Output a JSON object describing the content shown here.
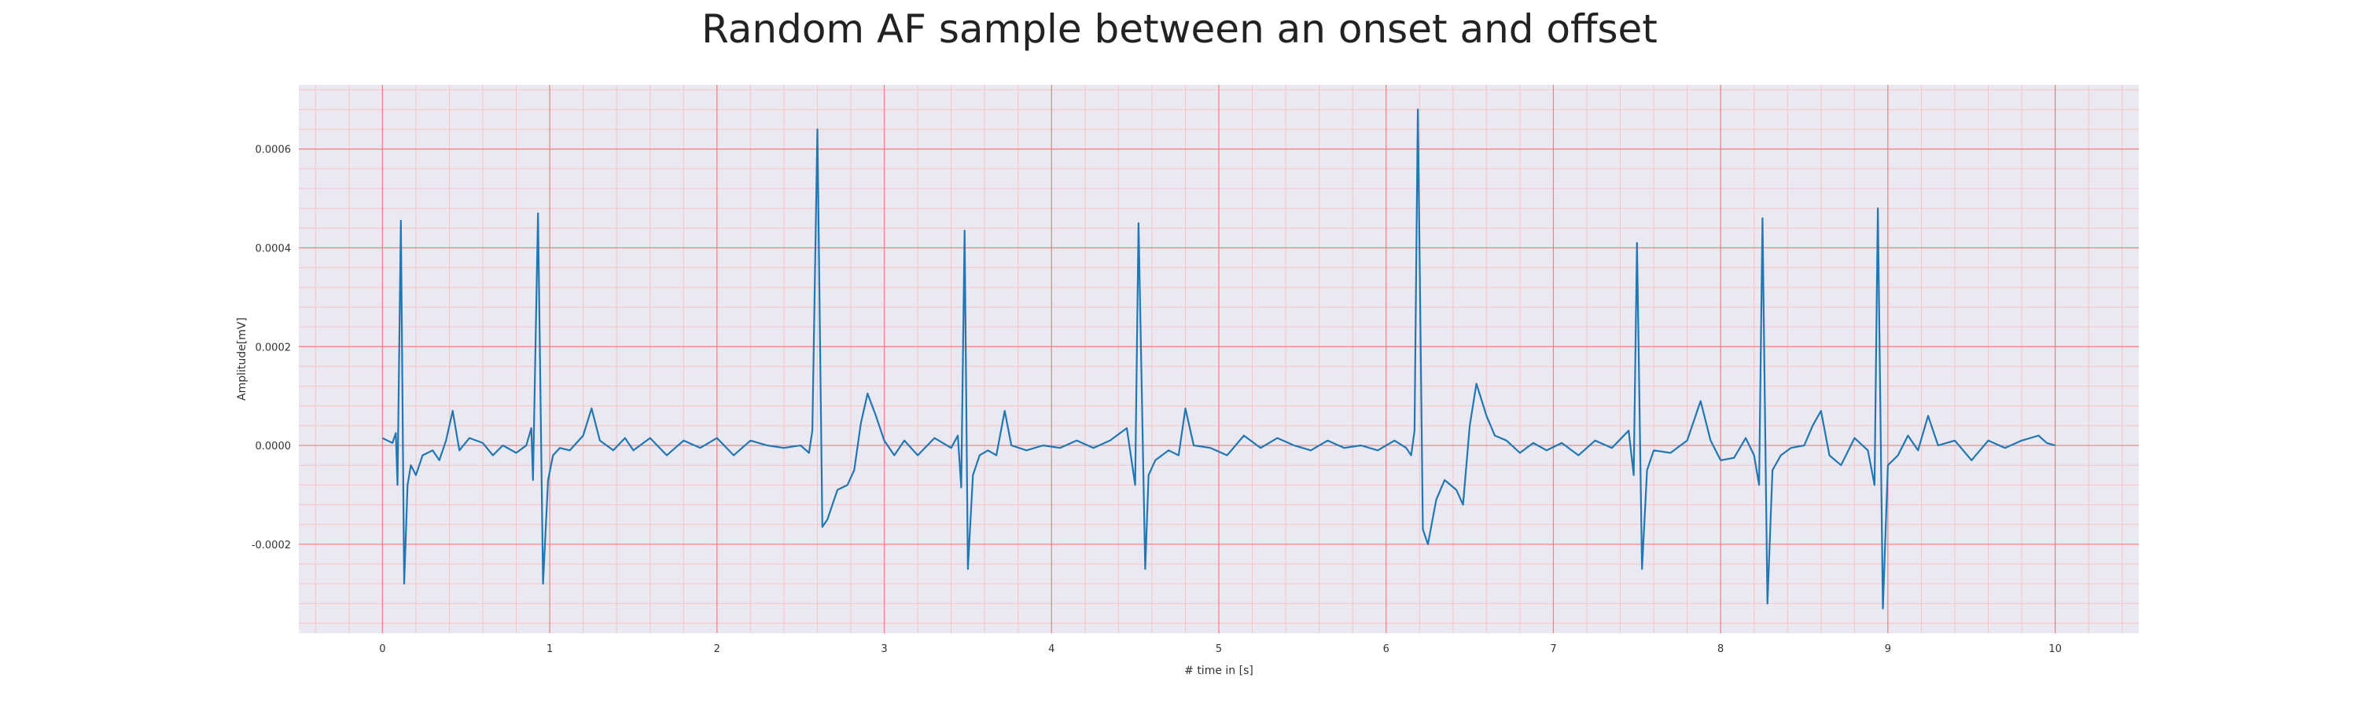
{
  "chart_data": {
    "type": "line",
    "title": "Random AF sample between an onset and offset",
    "xlabel": "# time in [s]",
    "ylabel": "Amplitude[mV]",
    "xlim": [
      -0.5,
      10.5
    ],
    "ylim": [
      -0.00038,
      0.00073
    ],
    "x_ticks": [
      0,
      1,
      2,
      3,
      4,
      5,
      6,
      7,
      8,
      9,
      10
    ],
    "x_tick_labels": [
      "0",
      "1",
      "2",
      "3",
      "4",
      "5",
      "6",
      "7",
      "8",
      "9",
      "10"
    ],
    "y_ticks": [
      -0.0002,
      0.0,
      0.0002,
      0.0004,
      0.0006
    ],
    "y_tick_labels": [
      "-0.0002",
      "0.0000",
      "0.0002",
      "0.0004",
      "0.0006"
    ],
    "grid": true,
    "colors": {
      "line": "#1f77b4",
      "background": "#eae9f2",
      "major_grid": "#f08080",
      "minor_grid": "#f7c4c4"
    },
    "series": [
      {
        "points": [
          [
            0.0,
            1.5e-05
          ],
          [
            0.03,
            1e-05
          ],
          [
            0.06,
            5e-06
          ],
          [
            0.08,
            2.5e-05
          ],
          [
            0.09,
            -8e-05
          ],
          [
            0.11,
            0.000455
          ],
          [
            0.13,
            -0.00028
          ],
          [
            0.15,
            -8e-05
          ],
          [
            0.17,
            -4e-05
          ],
          [
            0.2,
            -6e-05
          ],
          [
            0.24,
            -2e-05
          ],
          [
            0.3,
            -1e-05
          ],
          [
            0.34,
            -3e-05
          ],
          [
            0.38,
            1e-05
          ],
          [
            0.42,
            7e-05
          ],
          [
            0.46,
            -1e-05
          ],
          [
            0.52,
            1.5e-05
          ],
          [
            0.6,
            5e-06
          ],
          [
            0.66,
            -2e-05
          ],
          [
            0.72,
            0.0
          ],
          [
            0.8,
            -1.5e-05
          ],
          [
            0.86,
            0.0
          ],
          [
            0.89,
            3.5e-05
          ],
          [
            0.9,
            -7e-05
          ],
          [
            0.93,
            0.00047
          ],
          [
            0.96,
            -0.00028
          ],
          [
            0.99,
            -7e-05
          ],
          [
            1.02,
            -2e-05
          ],
          [
            1.06,
            -5e-06
          ],
          [
            1.12,
            -1e-05
          ],
          [
            1.2,
            2e-05
          ],
          [
            1.25,
            7.5e-05
          ],
          [
            1.3,
            1e-05
          ],
          [
            1.38,
            -1e-05
          ],
          [
            1.45,
            1.5e-05
          ],
          [
            1.5,
            -1e-05
          ],
          [
            1.6,
            1.5e-05
          ],
          [
            1.7,
            -2e-05
          ],
          [
            1.8,
            1e-05
          ],
          [
            1.9,
            -5e-06
          ],
          [
            2.0,
            1.5e-05
          ],
          [
            2.1,
            -2e-05
          ],
          [
            2.2,
            1e-05
          ],
          [
            2.3,
            0.0
          ],
          [
            2.4,
            -5e-06
          ],
          [
            2.5,
            0.0
          ],
          [
            2.55,
            -1.5e-05
          ],
          [
            2.57,
            3e-05
          ],
          [
            2.6,
            0.00064
          ],
          [
            2.63,
            -0.000165
          ],
          [
            2.66,
            -0.00015
          ],
          [
            2.72,
            -9e-05
          ],
          [
            2.78,
            -8e-05
          ],
          [
            2.82,
            -5e-05
          ],
          [
            2.86,
            4.5e-05
          ],
          [
            2.9,
            0.000105
          ],
          [
            2.95,
            6e-05
          ],
          [
            3.0,
            1e-05
          ],
          [
            3.06,
            -2e-05
          ],
          [
            3.12,
            1e-05
          ],
          [
            3.2,
            -2e-05
          ],
          [
            3.3,
            1.5e-05
          ],
          [
            3.4,
            -5e-06
          ],
          [
            3.44,
            2e-05
          ],
          [
            3.46,
            -8.5e-05
          ],
          [
            3.48,
            0.000435
          ],
          [
            3.5,
            -0.00025
          ],
          [
            3.53,
            -6e-05
          ],
          [
            3.57,
            -2e-05
          ],
          [
            3.62,
            -1e-05
          ],
          [
            3.67,
            -2e-05
          ],
          [
            3.72,
            7e-05
          ],
          [
            3.76,
            0.0
          ],
          [
            3.85,
            -1e-05
          ],
          [
            3.95,
            0.0
          ],
          [
            4.05,
            -5e-06
          ],
          [
            4.15,
            1e-05
          ],
          [
            4.25,
            -5e-06
          ],
          [
            4.35,
            1e-05
          ],
          [
            4.45,
            3.5e-05
          ],
          [
            4.5,
            -8e-05
          ],
          [
            4.52,
            0.00045
          ],
          [
            4.56,
            -0.00025
          ],
          [
            4.58,
            -6e-05
          ],
          [
            4.62,
            -3e-05
          ],
          [
            4.7,
            -1e-05
          ],
          [
            4.76,
            -2e-05
          ],
          [
            4.8,
            7.5e-05
          ],
          [
            4.85,
            0.0
          ],
          [
            4.95,
            -5e-06
          ],
          [
            5.05,
            -2e-05
          ],
          [
            5.15,
            2e-05
          ],
          [
            5.25,
            -5e-06
          ],
          [
            5.35,
            1.5e-05
          ],
          [
            5.45,
            0.0
          ],
          [
            5.55,
            -1e-05
          ],
          [
            5.65,
            1e-05
          ],
          [
            5.75,
            -5e-06
          ],
          [
            5.85,
            0.0
          ],
          [
            5.95,
            -1e-05
          ],
          [
            6.05,
            1e-05
          ],
          [
            6.12,
            -5e-06
          ],
          [
            6.15,
            -2e-05
          ],
          [
            6.17,
            3e-05
          ],
          [
            6.19,
            0.00068
          ],
          [
            6.22,
            -0.00017
          ],
          [
            6.25,
            -0.0002
          ],
          [
            6.3,
            -0.00011
          ],
          [
            6.35,
            -7e-05
          ],
          [
            6.42,
            -9e-05
          ],
          [
            6.46,
            -0.00012
          ],
          [
            6.5,
            4e-05
          ],
          [
            6.54,
            0.000125
          ],
          [
            6.6,
            6e-05
          ],
          [
            6.65,
            2e-05
          ],
          [
            6.72,
            1e-05
          ],
          [
            6.8,
            -1.5e-05
          ],
          [
            6.88,
            5e-06
          ],
          [
            6.96,
            -1e-05
          ],
          [
            7.05,
            5e-06
          ],
          [
            7.15,
            -2e-05
          ],
          [
            7.25,
            1e-05
          ],
          [
            7.35,
            -5e-06
          ],
          [
            7.45,
            3e-05
          ],
          [
            7.48,
            -6e-05
          ],
          [
            7.5,
            0.00041
          ],
          [
            7.53,
            -0.00025
          ],
          [
            7.56,
            -5e-05
          ],
          [
            7.6,
            -1e-05
          ],
          [
            7.7,
            -1.5e-05
          ],
          [
            7.8,
            1e-05
          ],
          [
            7.88,
            9e-05
          ],
          [
            7.94,
            1e-05
          ],
          [
            8.0,
            -3e-05
          ],
          [
            8.08,
            -2.5e-05
          ],
          [
            8.15,
            1.5e-05
          ],
          [
            8.2,
            -2e-05
          ],
          [
            8.23,
            -8e-05
          ],
          [
            8.25,
            0.00046
          ],
          [
            8.28,
            -0.00032
          ],
          [
            8.31,
            -5e-05
          ],
          [
            8.36,
            -2e-05
          ],
          [
            8.42,
            -5e-06
          ],
          [
            8.5,
            0.0
          ],
          [
            8.55,
            4e-05
          ],
          [
            8.6,
            7e-05
          ],
          [
            8.65,
            -2e-05
          ],
          [
            8.72,
            -4e-05
          ],
          [
            8.8,
            1.5e-05
          ],
          [
            8.88,
            -1e-05
          ],
          [
            8.92,
            -8e-05
          ],
          [
            8.94,
            0.00048
          ],
          [
            8.97,
            -0.00033
          ],
          [
            9.0,
            -4e-05
          ],
          [
            9.06,
            -2e-05
          ],
          [
            9.12,
            2e-05
          ],
          [
            9.18,
            -1e-05
          ],
          [
            9.24,
            6e-05
          ],
          [
            9.3,
            0.0
          ],
          [
            9.4,
            1e-05
          ],
          [
            9.5,
            -3e-05
          ],
          [
            9.6,
            1e-05
          ],
          [
            9.7,
            -5e-06
          ],
          [
            9.8,
            1e-05
          ],
          [
            9.9,
            2e-05
          ],
          [
            9.95,
            5e-06
          ],
          [
            10.0,
            0.0
          ]
        ]
      }
    ]
  }
}
